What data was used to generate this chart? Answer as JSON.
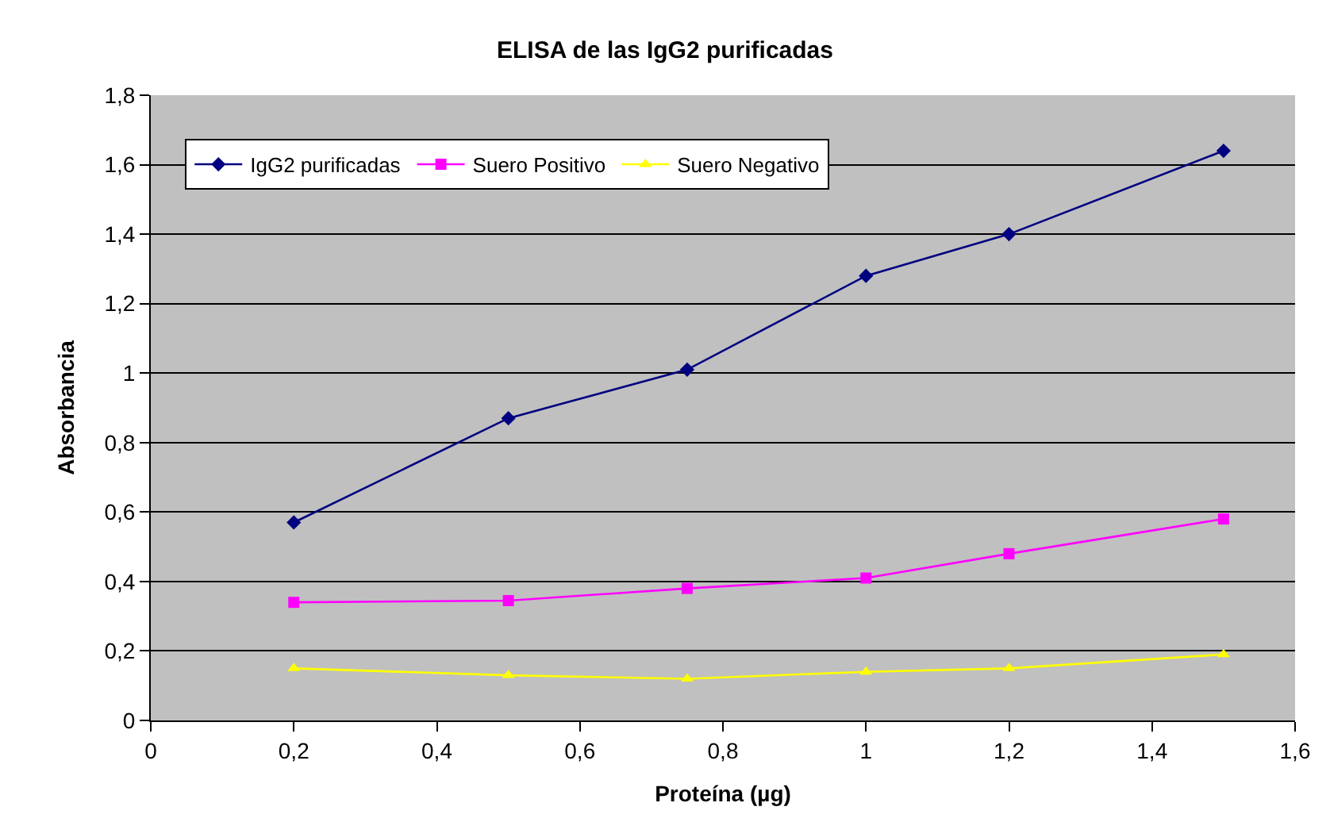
{
  "chart_data": {
    "type": "line",
    "title": "ELISA de las IgG2 purificadas",
    "xlabel": "Proteína (µg)",
    "ylabel": "Absorbancia",
    "x": [
      0.2,
      0.5,
      0.75,
      1,
      1.2,
      1.5
    ],
    "series": [
      {
        "name": "IgG2 purificadas",
        "color": "#000080",
        "marker": "diamond",
        "values": [
          0.57,
          0.87,
          1.01,
          1.28,
          1.4,
          1.64
        ]
      },
      {
        "name": "Suero Positivo",
        "color": "#ff00ff",
        "marker": "square",
        "values": [
          0.34,
          0.345,
          0.38,
          0.41,
          0.48,
          0.58
        ]
      },
      {
        "name": "Suero Negativo",
        "color": "#ffff00",
        "marker": "triangle",
        "values": [
          0.15,
          0.13,
          0.12,
          0.14,
          0.15,
          0.19
        ]
      }
    ],
    "xlim": [
      0,
      1.6
    ],
    "ylim": [
      0,
      1.8
    ],
    "xticks": [
      0,
      {
        "value": 0.2,
        "label": "0,2"
      },
      {
        "value": 0.4,
        "label": "0,4"
      },
      {
        "value": 0.6,
        "label": "0,6"
      },
      {
        "value": 0.8,
        "label": "0,8"
      },
      1,
      {
        "value": 1.2,
        "label": "1,2"
      },
      {
        "value": 1.4,
        "label": "1,4"
      },
      {
        "value": 1.6,
        "label": "1,6"
      }
    ],
    "yticks": [
      0,
      {
        "value": 0.2,
        "label": "0,2"
      },
      {
        "value": 0.4,
        "label": "0,4"
      },
      {
        "value": 0.6,
        "label": "0,6"
      },
      {
        "value": 0.8,
        "label": "0,8"
      },
      1,
      {
        "value": 1.2,
        "label": "1,2"
      },
      {
        "value": 1.4,
        "label": "1,4"
      },
      {
        "value": 1.6,
        "label": "1,6"
      },
      {
        "value": 1.8,
        "label": "1,8"
      }
    ],
    "grid": "y",
    "legend": "top left",
    "line_style": "solid"
  }
}
